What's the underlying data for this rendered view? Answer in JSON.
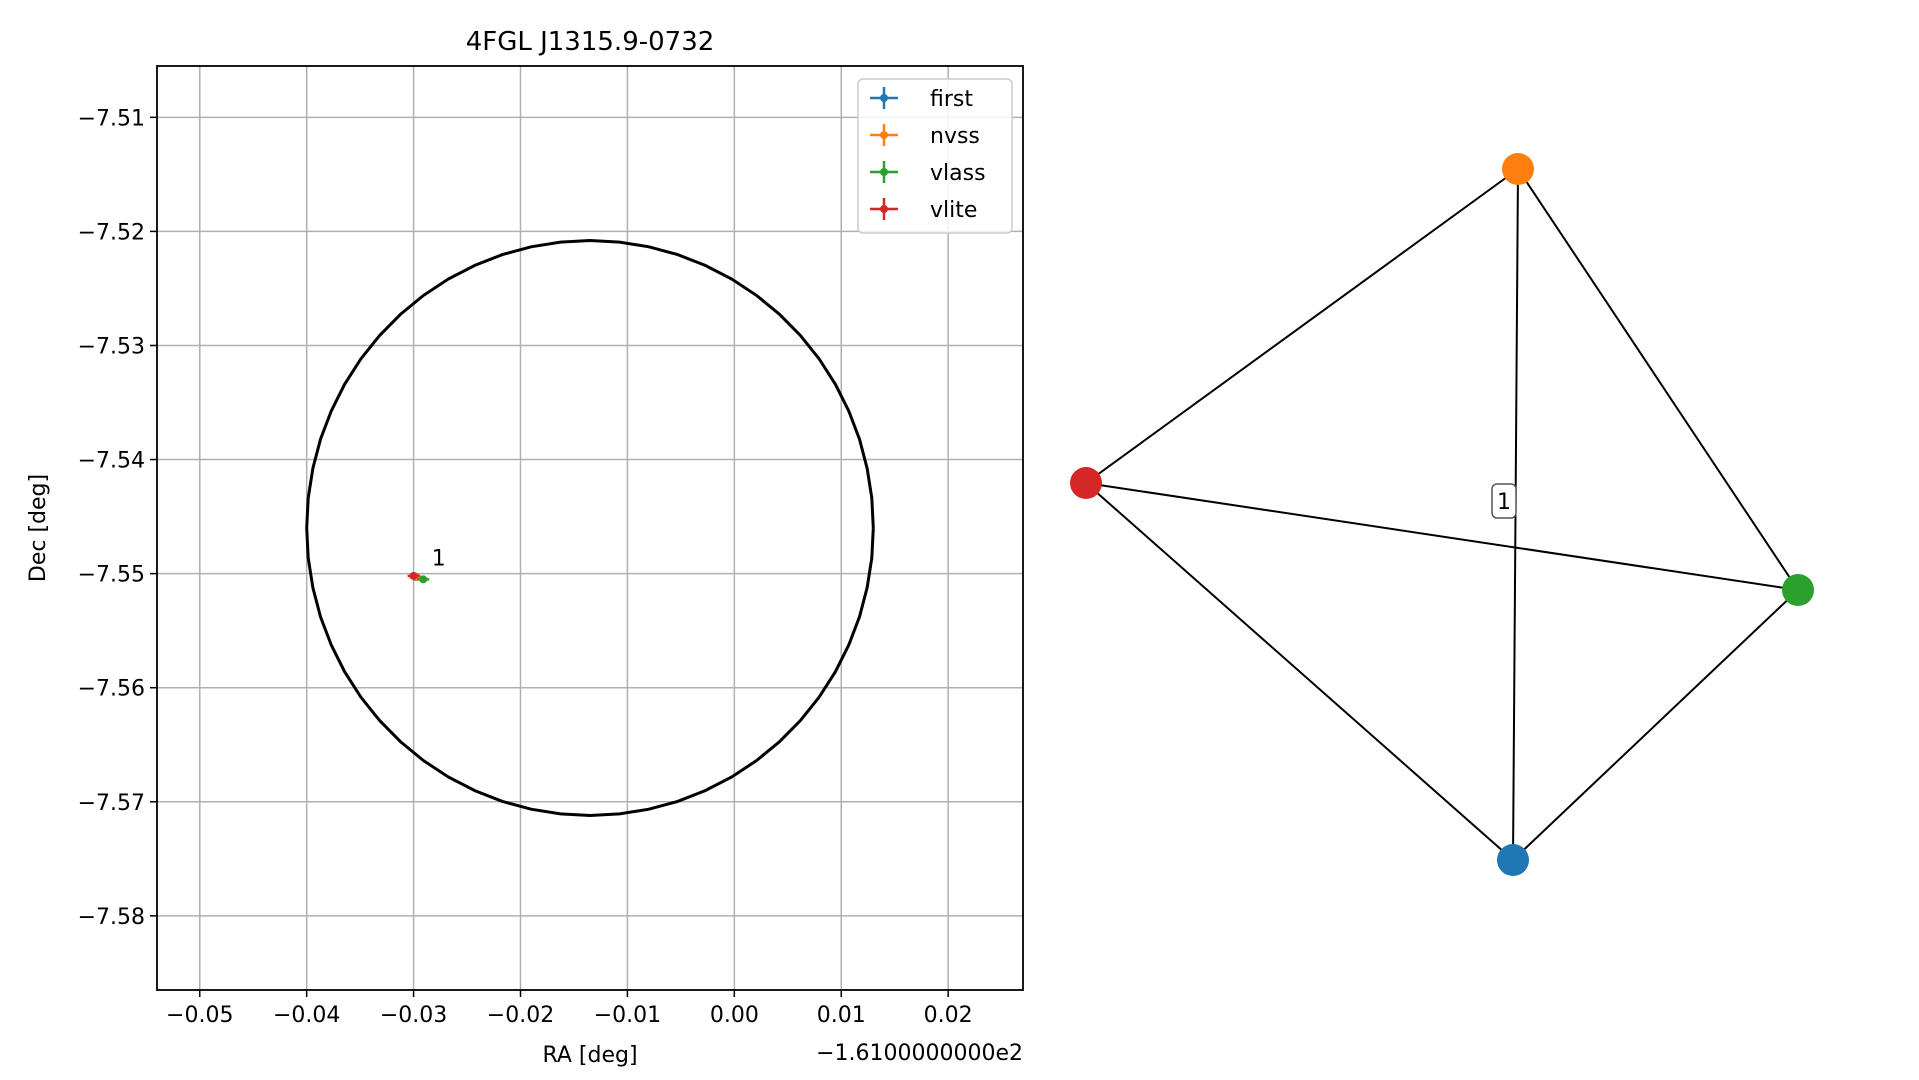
{
  "chart_data": [
    {
      "type": "scatter",
      "title": "4FGL J1315.9-0732",
      "xlabel": "RA [deg]",
      "ylabel": "Dec [deg]",
      "x_offset_label": "−1.6100000000e2",
      "xlim": [
        -0.054,
        0.027
      ],
      "ylim": [
        -7.5865,
        -7.5055
      ],
      "xticks": [
        -0.05,
        -0.04,
        -0.03,
        -0.02,
        -0.01,
        0.0,
        0.01,
        0.02
      ],
      "xtick_labels": [
        "−0.05",
        "−0.04",
        "−0.03",
        "−0.02",
        "−0.01",
        "0.00",
        "0.01",
        "0.02"
      ],
      "yticks": [
        -7.51,
        -7.52,
        -7.53,
        -7.54,
        -7.55,
        -7.56,
        -7.57,
        -7.58
      ],
      "ytick_labels": [
        "−7.51",
        "−7.52",
        "−7.53",
        "−7.54",
        "−7.55",
        "−7.56",
        "−7.57",
        "−7.58"
      ],
      "grid": true,
      "legend_position": "upper right",
      "series": [
        {
          "name": "first",
          "color": "#1f77b4",
          "x": [
            -0.0298
          ],
          "y": [
            -7.5503
          ]
        },
        {
          "name": "nvss",
          "color": "#ff7f0e",
          "x": [
            -0.0297
          ],
          "y": [
            -7.5503
          ]
        },
        {
          "name": "vlass",
          "color": "#2ca02c",
          "x": [
            -0.0291
          ],
          "y": [
            -7.5505
          ]
        },
        {
          "name": "vlite",
          "color": "#d62728",
          "x": [
            -0.03
          ],
          "y": [
            -7.5502
          ]
        }
      ],
      "ellipse": {
        "center_x": -0.0135,
        "center_y": -7.546,
        "semi_axis_x": 0.0265,
        "semi_axis_y": 0.0252,
        "color": "#000000"
      },
      "annotations": [
        {
          "text": "1",
          "x": -0.0283,
          "y": -7.5493
        }
      ]
    },
    {
      "type": "network",
      "nodes": [
        {
          "name": "first",
          "color": "#1f77b4"
        },
        {
          "name": "nvss",
          "color": "#ff7f0e"
        },
        {
          "name": "vlass",
          "color": "#2ca02c"
        },
        {
          "name": "vlite",
          "color": "#d62728"
        }
      ],
      "edges": [
        [
          "vlite",
          "nvss"
        ],
        [
          "vlite",
          "vlass"
        ],
        [
          "vlite",
          "first"
        ],
        [
          "nvss",
          "vlass"
        ],
        [
          "nvss",
          "first"
        ],
        [
          "vlass",
          "first"
        ]
      ],
      "edge_label": "1"
    }
  ]
}
